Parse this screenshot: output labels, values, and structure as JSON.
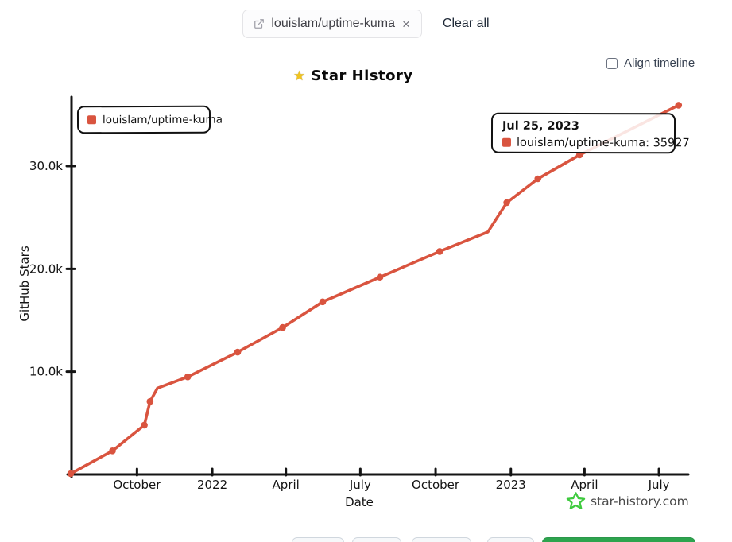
{
  "theme": {
    "series_color": "#d9543f",
    "green": "#2da44e",
    "logo_green": "#3fca3f",
    "axis_color": "#141414"
  },
  "toolbar": {
    "repo_tag": {
      "label": "louislam/uptime-kuma",
      "remove_icon": "×"
    },
    "clear_all_label": "Clear all"
  },
  "controls": {
    "align_timeline_label": "Align timeline",
    "align_timeline_checked": false
  },
  "header": {
    "title": "Star History",
    "title_icon": "★"
  },
  "legend": {
    "items": [
      {
        "label": "louislam/uptime-kuma",
        "color": "#d9543f"
      }
    ]
  },
  "tooltip": {
    "date": "Jul 25, 2023",
    "entries": [
      {
        "text": "louislam/uptime-kuma: 35927",
        "color": "#d9543f"
      }
    ]
  },
  "footer_logo": {
    "label": "star-history.com"
  },
  "chart_data": {
    "type": "line",
    "title": "Star History",
    "xlabel": "Date",
    "ylabel": "GitHub Stars",
    "xlim": [
      "2021-07-12",
      "2023-08-02"
    ],
    "ylim": [
      0,
      36500
    ],
    "grid": false,
    "legend_position": "top-left",
    "x_ticks": [
      {
        "date": "2021-10-01",
        "label": "October"
      },
      {
        "date": "2022-01-01",
        "label": "2022"
      },
      {
        "date": "2022-04-01",
        "label": "April"
      },
      {
        "date": "2022-07-01",
        "label": "July"
      },
      {
        "date": "2022-10-01",
        "label": "October"
      },
      {
        "date": "2023-01-01",
        "label": "2023"
      },
      {
        "date": "2023-04-01",
        "label": "April"
      },
      {
        "date": "2023-07-01",
        "label": "July"
      }
    ],
    "y_ticks": [
      {
        "value": 10000,
        "label": "10.0k"
      },
      {
        "value": 20000,
        "label": "20.0k"
      },
      {
        "value": 30000,
        "label": "30.0k"
      }
    ],
    "series": [
      {
        "name": "louislam/uptime-kuma",
        "color": "#d9543f",
        "points": [
          {
            "date": "2021-07-12",
            "stars": 80
          },
          {
            "date": "2021-09-01",
            "stars": 2300
          },
          {
            "date": "2021-10-10",
            "stars": 4800
          },
          {
            "date": "2021-10-17",
            "stars": 7100
          },
          {
            "date": "2021-10-26",
            "stars": 8400,
            "dot": false
          },
          {
            "date": "2021-12-02",
            "stars": 9500
          },
          {
            "date": "2022-02-01",
            "stars": 11900
          },
          {
            "date": "2022-03-28",
            "stars": 14300
          },
          {
            "date": "2022-05-16",
            "stars": 16800
          },
          {
            "date": "2022-07-25",
            "stars": 19200
          },
          {
            "date": "2022-10-06",
            "stars": 21700
          },
          {
            "date": "2022-12-04",
            "stars": 23600,
            "dot": false
          },
          {
            "date": "2022-12-27",
            "stars": 26450
          },
          {
            "date": "2023-02-03",
            "stars": 28770
          },
          {
            "date": "2023-03-26",
            "stars": 31090
          },
          {
            "date": "2023-07-25",
            "stars": 35927
          }
        ]
      }
    ]
  }
}
